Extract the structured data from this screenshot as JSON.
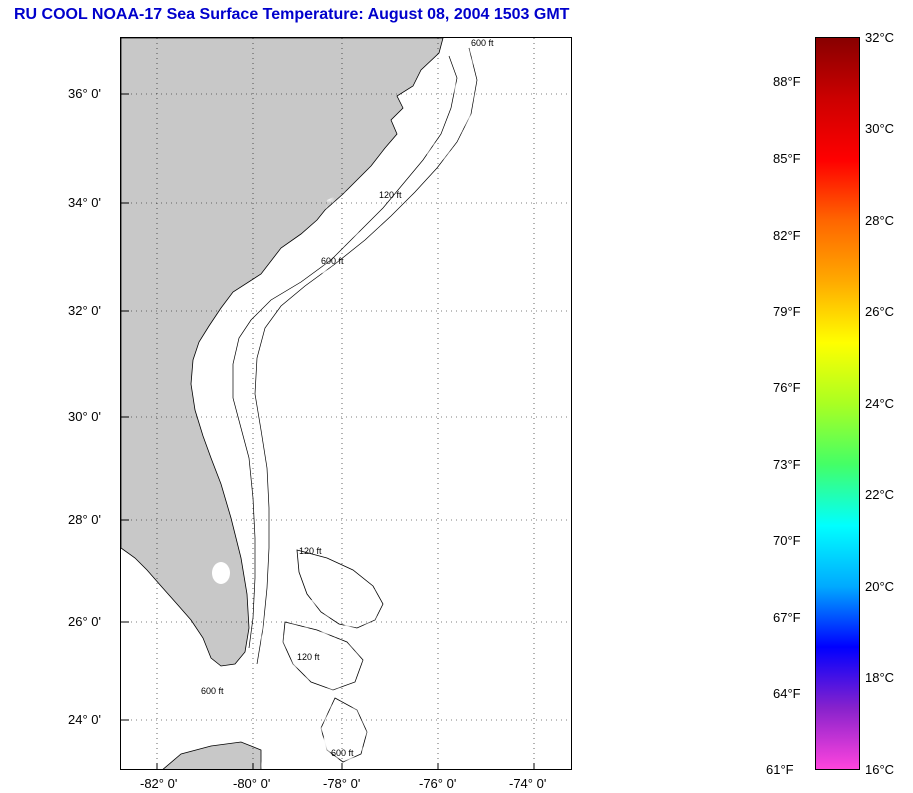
{
  "title": "RU COOL  NOAA-17  Sea Surface Temperature:  August 08, 2004 1503 GMT",
  "map": {
    "lat_ticks": [
      "36° 0'",
      "34° 0'",
      "32° 0'",
      "30° 0'",
      "28° 0'",
      "26° 0'",
      "24° 0'"
    ],
    "lon_ticks": [
      "-82° 0'",
      "-80° 0'",
      "-78° 0'",
      "-76° 0'",
      "-74° 0'"
    ],
    "contour_labels": [
      "600 ft",
      "120 ft"
    ],
    "colors": {
      "land": "#c8c8c8",
      "ocean_nodata": "#ffffff",
      "grid": "#000000"
    }
  },
  "colorbar": {
    "f_labels": [
      "88°F",
      "85°F",
      "82°F",
      "79°F",
      "76°F",
      "73°F",
      "70°F",
      "67°F",
      "64°F",
      "61°F"
    ],
    "c_labels": [
      "32°C",
      "30°C",
      "28°C",
      "26°C",
      "24°C",
      "22°C",
      "20°C",
      "18°C",
      "16°C"
    ],
    "min_c": 16,
    "max_c": 32,
    "colors": [
      "#ff44dd",
      "#8822cc",
      "#0000ff",
      "#00aaff",
      "#00ffff",
      "#44ff66",
      "#aaff22",
      "#ffff00",
      "#ffaa00",
      "#ff6600",
      "#ff0000",
      "#cc0000",
      "#880000"
    ]
  }
}
